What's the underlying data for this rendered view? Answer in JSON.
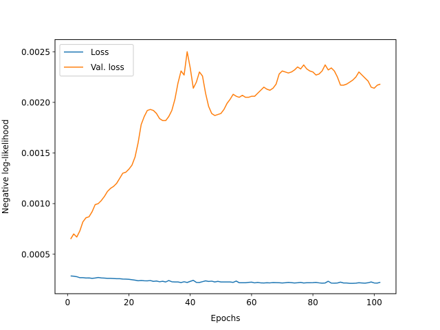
{
  "chart_data": {
    "type": "line",
    "title": "",
    "xlabel": "Epochs",
    "ylabel": "Negative log-likelihood",
    "xlim": [
      -4.1,
      107.1
    ],
    "ylim": [
      0.00011,
      0.00262
    ],
    "xticks": [
      0,
      20,
      40,
      60,
      80,
      100
    ],
    "xtick_labels": [
      "0",
      "20",
      "40",
      "60",
      "80",
      "100"
    ],
    "yticks": [
      0.0005,
      0.001,
      0.0015,
      0.002,
      0.0025
    ],
    "ytick_labels": [
      "0.0005",
      "0.0010",
      "0.0015",
      "0.0020",
      "0.0025"
    ],
    "grid": false,
    "legend_position": "upper-left",
    "series": [
      {
        "name": "Loss",
        "color": "#1f77b4",
        "x": [
          1,
          2,
          3,
          4,
          5,
          6,
          7,
          8,
          9,
          10,
          11,
          12,
          13,
          14,
          15,
          16,
          17,
          18,
          19,
          20,
          21,
          22,
          23,
          24,
          25,
          26,
          27,
          28,
          29,
          30,
          31,
          32,
          33,
          34,
          35,
          36,
          37,
          38,
          39,
          40,
          41,
          42,
          43,
          44,
          45,
          46,
          47,
          48,
          49,
          50,
          51,
          52,
          53,
          54,
          55,
          56,
          57,
          58,
          59,
          60,
          61,
          62,
          63,
          64,
          65,
          66,
          67,
          68,
          69,
          70,
          71,
          72,
          73,
          74,
          75,
          76,
          77,
          78,
          79,
          80,
          81,
          82,
          83,
          84,
          85,
          86,
          87,
          88,
          89,
          90,
          91,
          92,
          93,
          94,
          95,
          96,
          97,
          98,
          99,
          100,
          101,
          102
        ],
        "values": [
          0.000285,
          0.000283,
          0.000278,
          0.000268,
          0.000268,
          0.000265,
          0.000266,
          0.000262,
          0.000265,
          0.00027,
          0.000266,
          0.000264,
          0.000262,
          0.000262,
          0.00026,
          0.000258,
          0.000258,
          0.000255,
          0.000254,
          0.000252,
          0.000248,
          0.000244,
          0.000238,
          0.00024,
          0.000238,
          0.000237,
          0.00024,
          0.000232,
          0.000235,
          0.000228,
          0.000233,
          0.000226,
          0.00024,
          0.000228,
          0.000226,
          0.000226,
          0.00022,
          0.000228,
          0.000221,
          0.000232,
          0.000242,
          0.000222,
          0.000221,
          0.000229,
          0.000237,
          0.000231,
          0.000234,
          0.000226,
          0.000232,
          0.000226,
          0.000226,
          0.000226,
          0.000226,
          0.000222,
          0.000235,
          0.000218,
          0.000218,
          0.000218,
          0.000222,
          0.000224,
          0.000217,
          0.000222,
          0.000217,
          0.000216,
          0.000218,
          0.000217,
          0.00022,
          0.000219,
          0.000218,
          0.000216,
          0.000218,
          0.000222,
          0.000219,
          0.000216,
          0.000218,
          0.000222,
          0.000216,
          0.000218,
          0.000218,
          0.000219,
          0.000222,
          0.000217,
          0.000214,
          0.000216,
          0.000233,
          0.000215,
          0.000214,
          0.000216,
          0.000224,
          0.000216,
          0.000216,
          0.000212,
          0.000212,
          0.000214,
          0.000218,
          0.000216,
          0.000214,
          0.000218,
          0.000226,
          0.000216,
          0.000215,
          0.000223
        ]
      },
      {
        "name": "Val. loss",
        "color": "#ff7f0e",
        "x": [
          1,
          2,
          3,
          4,
          5,
          6,
          7,
          8,
          9,
          10,
          11,
          12,
          13,
          14,
          15,
          16,
          17,
          18,
          19,
          20,
          21,
          22,
          23,
          24,
          25,
          26,
          27,
          28,
          29,
          30,
          31,
          32,
          33,
          34,
          35,
          36,
          37,
          38,
          39,
          40,
          41,
          42,
          43,
          44,
          45,
          46,
          47,
          48,
          49,
          50,
          51,
          52,
          53,
          54,
          55,
          56,
          57,
          58,
          59,
          60,
          61,
          62,
          63,
          64,
          65,
          66,
          67,
          68,
          69,
          70,
          71,
          72,
          73,
          74,
          75,
          76,
          77,
          78,
          79,
          80,
          81,
          82,
          83,
          84,
          85,
          86,
          87,
          88,
          89,
          90,
          91,
          92,
          93,
          94,
          95,
          96,
          97,
          98,
          99,
          100,
          101,
          102
        ],
        "values": [
          0.00065,
          0.0007,
          0.00067,
          0.00073,
          0.00082,
          0.00086,
          0.00087,
          0.00092,
          0.00099,
          0.001,
          0.00103,
          0.00107,
          0.00112,
          0.00115,
          0.00117,
          0.0012,
          0.00125,
          0.0013,
          0.00131,
          0.00134,
          0.00138,
          0.00146,
          0.0016,
          0.00178,
          0.00186,
          0.00192,
          0.00193,
          0.00192,
          0.00189,
          0.00184,
          0.00182,
          0.00182,
          0.00186,
          0.00192,
          0.00203,
          0.00219,
          0.00231,
          0.00227,
          0.0025,
          0.00234,
          0.00214,
          0.0022,
          0.0023,
          0.00226,
          0.00209,
          0.00196,
          0.00189,
          0.00187,
          0.00188,
          0.00189,
          0.00193,
          0.00199,
          0.00203,
          0.00208,
          0.00206,
          0.00205,
          0.00207,
          0.00205,
          0.00205,
          0.00206,
          0.00206,
          0.00209,
          0.00212,
          0.00215,
          0.00213,
          0.00212,
          0.00214,
          0.00218,
          0.00228,
          0.00231,
          0.0023,
          0.00229,
          0.0023,
          0.00232,
          0.00235,
          0.00233,
          0.00237,
          0.00233,
          0.00231,
          0.0023,
          0.00227,
          0.00228,
          0.00231,
          0.00237,
          0.00232,
          0.00234,
          0.00231,
          0.00225,
          0.00217,
          0.00217,
          0.00218,
          0.0022,
          0.00222,
          0.00225,
          0.0023,
          0.00227,
          0.00224,
          0.00221,
          0.00215,
          0.00214,
          0.00217,
          0.00218
        ]
      }
    ]
  }
}
